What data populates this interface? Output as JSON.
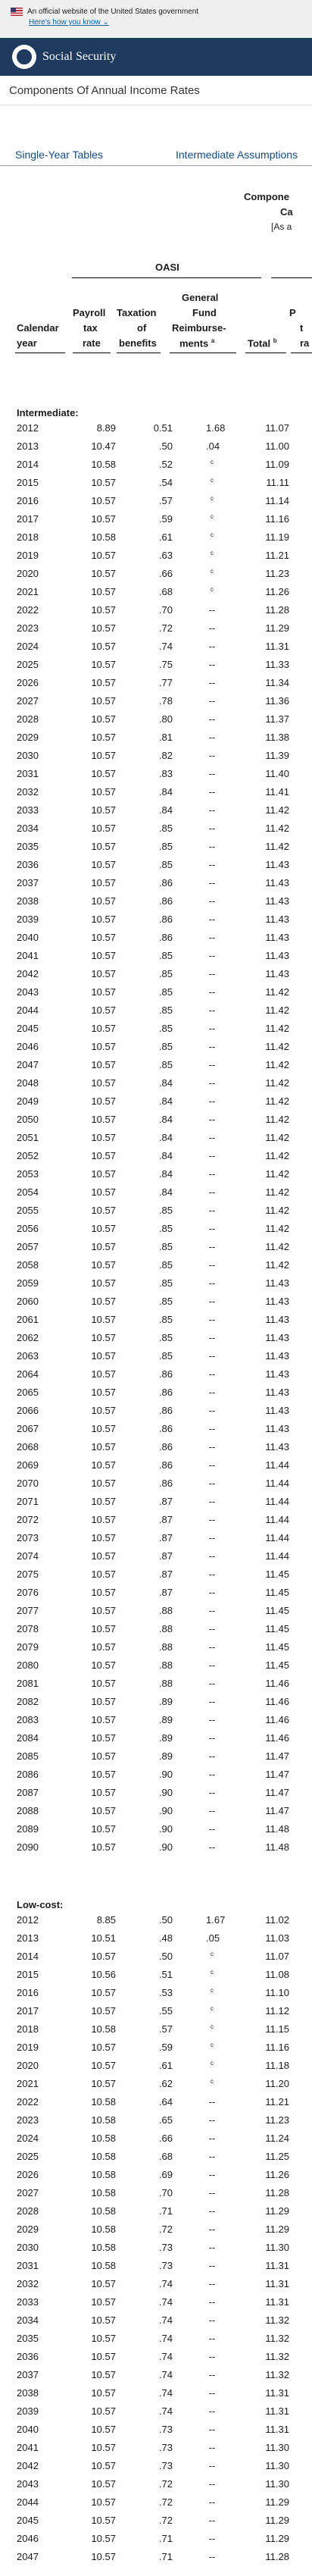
{
  "banner": {
    "official": "An official website of the United States government",
    "how_know": "Here's how you know"
  },
  "header": {
    "brand": "Social Security"
  },
  "page": {
    "title": "Components Of Annual Income Rates"
  },
  "tabs": {
    "single_year": "Single-Year Tables",
    "intermediate": "Intermediate Assumptions"
  },
  "table_header": {
    "components_line1": "Compone",
    "components_line2": "Ca",
    "components_line3": "[As a",
    "group": "OASI",
    "col_year": [
      "Calendar",
      "year"
    ],
    "col_payroll": [
      "Payroll",
      "tax",
      "rate"
    ],
    "col_tax": [
      "Taxation",
      "of",
      "benefits"
    ],
    "col_gf": [
      "General",
      "Fund",
      "Reimburse-",
      "ments"
    ],
    "col_gf_note": "a",
    "col_total": "Total",
    "col_total_note": "b",
    "col_next": [
      "P",
      "t",
      "ra"
    ]
  },
  "sections": [
    {
      "title": "Intermediate:",
      "rows": [
        [
          "2012",
          "8.89",
          "0.51",
          "1.68",
          "11.07"
        ],
        [
          "2013",
          "10.47",
          ".50",
          ".04",
          "11.00"
        ],
        [
          "2014",
          "10.58",
          ".52",
          "c",
          "11.09"
        ],
        [
          "2015",
          "10.57",
          ".54",
          "c",
          "11.11"
        ],
        [
          "2016",
          "10.57",
          ".57",
          "c",
          "11.14"
        ],
        [
          "2017",
          "10.57",
          ".59",
          "c",
          "11.16"
        ],
        [
          "2018",
          "10.58",
          ".61",
          "c",
          "11.19"
        ],
        [
          "2019",
          "10.57",
          ".63",
          "c",
          "11.21"
        ],
        [
          "2020",
          "10.57",
          ".66",
          "c",
          "11.23"
        ],
        [
          "2021",
          "10.57",
          ".68",
          "c",
          "11.26"
        ],
        [
          "2022",
          "10.57",
          ".70",
          "--",
          "11.28"
        ],
        [
          "2023",
          "10.57",
          ".72",
          "--",
          "11.29"
        ],
        [
          "2024",
          "10.57",
          ".74",
          "--",
          "11.31"
        ],
        [
          "2025",
          "10.57",
          ".75",
          "--",
          "11.33"
        ],
        [
          "2026",
          "10.57",
          ".77",
          "--",
          "11.34"
        ],
        [
          "2027",
          "10.57",
          ".78",
          "--",
          "11.36"
        ],
        [
          "2028",
          "10.57",
          ".80",
          "--",
          "11.37"
        ],
        [
          "2029",
          "10.57",
          ".81",
          "--",
          "11.38"
        ],
        [
          "2030",
          "10.57",
          ".82",
          "--",
          "11.39"
        ],
        [
          "2031",
          "10.57",
          ".83",
          "--",
          "11.40"
        ],
        [
          "2032",
          "10.57",
          ".84",
          "--",
          "11.41"
        ],
        [
          "2033",
          "10.57",
          ".84",
          "--",
          "11.42"
        ],
        [
          "2034",
          "10.57",
          ".85",
          "--",
          "11.42"
        ],
        [
          "2035",
          "10.57",
          ".85",
          "--",
          "11.42"
        ],
        [
          "2036",
          "10.57",
          ".85",
          "--",
          "11.43"
        ],
        [
          "2037",
          "10.57",
          ".86",
          "--",
          "11.43"
        ],
        [
          "2038",
          "10.57",
          ".86",
          "--",
          "11.43"
        ],
        [
          "2039",
          "10.57",
          ".86",
          "--",
          "11.43"
        ],
        [
          "2040",
          "10.57",
          ".86",
          "--",
          "11.43"
        ],
        [
          "2041",
          "10.57",
          ".85",
          "--",
          "11.43"
        ],
        [
          "2042",
          "10.57",
          ".85",
          "--",
          "11.43"
        ],
        [
          "2043",
          "10.57",
          ".85",
          "--",
          "11.42"
        ],
        [
          "2044",
          "10.57",
          ".85",
          "--",
          "11.42"
        ],
        [
          "2045",
          "10.57",
          ".85",
          "--",
          "11.42"
        ],
        [
          "2046",
          "10.57",
          ".85",
          "--",
          "11.42"
        ],
        [
          "2047",
          "10.57",
          ".85",
          "--",
          "11.42"
        ],
        [
          "2048",
          "10.57",
          ".84",
          "--",
          "11.42"
        ],
        [
          "2049",
          "10.57",
          ".84",
          "--",
          "11.42"
        ],
        [
          "2050",
          "10.57",
          ".84",
          "--",
          "11.42"
        ],
        [
          "2051",
          "10.57",
          ".84",
          "--",
          "11.42"
        ],
        [
          "2052",
          "10.57",
          ".84",
          "--",
          "11.42"
        ],
        [
          "2053",
          "10.57",
          ".84",
          "--",
          "11.42"
        ],
        [
          "2054",
          "10.57",
          ".84",
          "--",
          "11.42"
        ],
        [
          "2055",
          "10.57",
          ".85",
          "--",
          "11.42"
        ],
        [
          "2056",
          "10.57",
          ".85",
          "--",
          "11.42"
        ],
        [
          "2057",
          "10.57",
          ".85",
          "--",
          "11.42"
        ],
        [
          "2058",
          "10.57",
          ".85",
          "--",
          "11.42"
        ],
        [
          "2059",
          "10.57",
          ".85",
          "--",
          "11.43"
        ],
        [
          "2060",
          "10.57",
          ".85",
          "--",
          "11.43"
        ],
        [
          "2061",
          "10.57",
          ".85",
          "--",
          "11.43"
        ],
        [
          "2062",
          "10.57",
          ".85",
          "--",
          "11.43"
        ],
        [
          "2063",
          "10.57",
          ".85",
          "--",
          "11.43"
        ],
        [
          "2064",
          "10.57",
          ".86",
          "--",
          "11.43"
        ],
        [
          "2065",
          "10.57",
          ".86",
          "--",
          "11.43"
        ],
        [
          "2066",
          "10.57",
          ".86",
          "--",
          "11.43"
        ],
        [
          "2067",
          "10.57",
          ".86",
          "--",
          "11.43"
        ],
        [
          "2068",
          "10.57",
          ".86",
          "--",
          "11.43"
        ],
        [
          "2069",
          "10.57",
          ".86",
          "--",
          "11.44"
        ],
        [
          "2070",
          "10.57",
          ".86",
          "--",
          "11.44"
        ],
        [
          "2071",
          "10.57",
          ".87",
          "--",
          "11.44"
        ],
        [
          "2072",
          "10.57",
          ".87",
          "--",
          "11.44"
        ],
        [
          "2073",
          "10.57",
          ".87",
          "--",
          "11.44"
        ],
        [
          "2074",
          "10.57",
          ".87",
          "--",
          "11.44"
        ],
        [
          "2075",
          "10.57",
          ".87",
          "--",
          "11.45"
        ],
        [
          "2076",
          "10.57",
          ".87",
          "--",
          "11.45"
        ],
        [
          "2077",
          "10.57",
          ".88",
          "--",
          "11.45"
        ],
        [
          "2078",
          "10.57",
          ".88",
          "--",
          "11.45"
        ],
        [
          "2079",
          "10.57",
          ".88",
          "--",
          "11.45"
        ],
        [
          "2080",
          "10.57",
          ".88",
          "--",
          "11.45"
        ],
        [
          "2081",
          "10.57",
          ".88",
          "--",
          "11.46"
        ],
        [
          "2082",
          "10.57",
          ".89",
          "--",
          "11.46"
        ],
        [
          "2083",
          "10.57",
          ".89",
          "--",
          "11.46"
        ],
        [
          "2084",
          "10.57",
          ".89",
          "--",
          "11.46"
        ],
        [
          "2085",
          "10.57",
          ".89",
          "--",
          "11.47"
        ],
        [
          "2086",
          "10.57",
          ".90",
          "--",
          "11.47"
        ],
        [
          "2087",
          "10.57",
          ".90",
          "--",
          "11.47"
        ],
        [
          "2088",
          "10.57",
          ".90",
          "--",
          "11.47"
        ],
        [
          "2089",
          "10.57",
          ".90",
          "--",
          "11.48"
        ],
        [
          "2090",
          "10.57",
          ".90",
          "--",
          "11.48"
        ]
      ]
    },
    {
      "title": "Low-cost:",
      "rows": [
        [
          "2012",
          "8.85",
          ".50",
          "1.67",
          "11.02"
        ],
        [
          "2013",
          "10.51",
          ".48",
          ".05",
          "11.03"
        ],
        [
          "2014",
          "10.57",
          ".50",
          "c",
          "11.07"
        ],
        [
          "2015",
          "10.56",
          ".51",
          "c",
          "11.08"
        ],
        [
          "2016",
          "10.57",
          ".53",
          "c",
          "11.10"
        ],
        [
          "2017",
          "10.57",
          ".55",
          "c",
          "11.12"
        ],
        [
          "2018",
          "10.58",
          ".57",
          "c",
          "11.15"
        ],
        [
          "2019",
          "10.57",
          ".59",
          "c",
          "11.16"
        ],
        [
          "2020",
          "10.57",
          ".61",
          "c",
          "11.18"
        ],
        [
          "2021",
          "10.57",
          ".62",
          "c",
          "11.20"
        ],
        [
          "2022",
          "10.58",
          ".64",
          "--",
          "11.21"
        ],
        [
          "2023",
          "10.58",
          ".65",
          "--",
          "11.23"
        ],
        [
          "2024",
          "10.58",
          ".66",
          "--",
          "11.24"
        ],
        [
          "2025",
          "10.58",
          ".68",
          "--",
          "11.25"
        ],
        [
          "2026",
          "10.58",
          ".69",
          "--",
          "11.26"
        ],
        [
          "2027",
          "10.58",
          ".70",
          "--",
          "11.28"
        ],
        [
          "2028",
          "10.58",
          ".71",
          "--",
          "11.29"
        ],
        [
          "2029",
          "10.58",
          ".72",
          "--",
          "11.29"
        ],
        [
          "2030",
          "10.58",
          ".73",
          "--",
          "11.30"
        ],
        [
          "2031",
          "10.58",
          ".73",
          "--",
          "11.31"
        ],
        [
          "2032",
          "10.57",
          ".74",
          "--",
          "11.31"
        ],
        [
          "2033",
          "10.57",
          ".74",
          "--",
          "11.31"
        ],
        [
          "2034",
          "10.57",
          ".74",
          "--",
          "11.32"
        ],
        [
          "2035",
          "10.57",
          ".74",
          "--",
          "11.32"
        ],
        [
          "2036",
          "10.57",
          ".74",
          "--",
          "11.32"
        ],
        [
          "2037",
          "10.57",
          ".74",
          "--",
          "11.32"
        ],
        [
          "2038",
          "10.57",
          ".74",
          "--",
          "11.31"
        ],
        [
          "2039",
          "10.57",
          ".74",
          "--",
          "11.31"
        ],
        [
          "2040",
          "10.57",
          ".73",
          "--",
          "11.31"
        ],
        [
          "2041",
          "10.57",
          ".73",
          "--",
          "11.30"
        ],
        [
          "2042",
          "10.57",
          ".73",
          "--",
          "11.30"
        ],
        [
          "2043",
          "10.57",
          ".72",
          "--",
          "11.30"
        ],
        [
          "2044",
          "10.57",
          ".72",
          "--",
          "11.29"
        ],
        [
          "2045",
          "10.57",
          ".72",
          "--",
          "11.29"
        ],
        [
          "2046",
          "10.57",
          ".71",
          "--",
          "11.29"
        ],
        [
          "2047",
          "10.57",
          ".71",
          "--",
          "11.28"
        ]
      ]
    }
  ]
}
